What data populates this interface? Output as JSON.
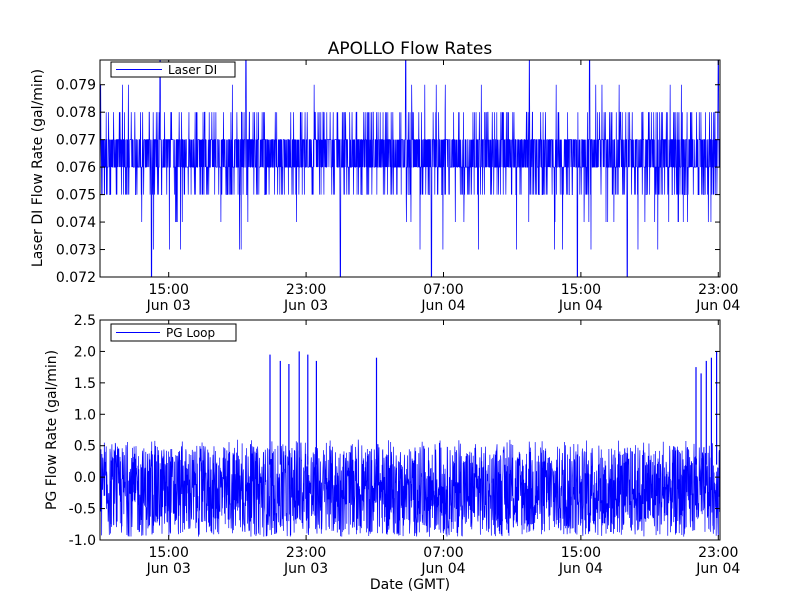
{
  "figure": {
    "title": "APOLLO Flow Rates",
    "xlabel": "Date (GMT)"
  },
  "chart_data": [
    {
      "type": "line",
      "title": "APOLLO Flow Rates",
      "xlabel": "",
      "ylabel": "Laser DI Flow Rate (gal/min)",
      "ylim": [
        0.072,
        0.0799
      ],
      "yticks": [
        "0.072",
        "0.073",
        "0.074",
        "0.075",
        "0.076",
        "0.077",
        "0.078",
        "0.079"
      ],
      "xticks": [
        {
          "time": "15:00",
          "date": "Jun 03"
        },
        {
          "time": "23:00",
          "date": "Jun 03"
        },
        {
          "time": "07:00",
          "date": "Jun 04"
        },
        {
          "time": "15:00",
          "date": "Jun 04"
        },
        {
          "time": "23:00",
          "date": "Jun 04"
        }
      ],
      "xlim_hours": [
        11.0,
        47.1
      ],
      "xtick_hours": [
        15,
        23,
        31,
        39,
        47
      ],
      "legend": {
        "label": "Laser DI",
        "placement": "top-left"
      },
      "series": [
        {
          "name": "Laser DI",
          "color": "#0000ff",
          "baseline": 0.0765,
          "band": [
            0.076,
            0.077
          ],
          "common_range": [
            0.075,
            0.078
          ],
          "occasional_range": [
            0.073,
            0.079
          ],
          "extremes": [
            0.072,
            0.08
          ],
          "spikes_high_hours": [
            14.5,
            19.5,
            28.8,
            36.0,
            39.5,
            47.0
          ],
          "spikes_low_hours": [
            14.0,
            25.0,
            30.3,
            38.8,
            41.7
          ]
        }
      ]
    },
    {
      "type": "line",
      "title": "",
      "xlabel": "Date (GMT)",
      "ylabel": "PG Flow Rate (gal/min)",
      "ylim": [
        -1.0,
        2.5
      ],
      "yticks": [
        "-1.0",
        "-0.5",
        "0.0",
        "0.5",
        "1.0",
        "1.5",
        "2.0",
        "2.5"
      ],
      "xticks": [
        {
          "time": "15:00",
          "date": "Jun 03"
        },
        {
          "time": "23:00",
          "date": "Jun 03"
        },
        {
          "time": "07:00",
          "date": "Jun 04"
        },
        {
          "time": "15:00",
          "date": "Jun 04"
        },
        {
          "time": "23:00",
          "date": "Jun 04"
        }
      ],
      "xlim_hours": [
        11.0,
        47.1
      ],
      "xtick_hours": [
        15,
        23,
        31,
        39,
        47
      ],
      "legend": {
        "label": "PG Loop",
        "placement": "top-left"
      },
      "series": [
        {
          "name": "PG Loop",
          "color": "#0000ff",
          "noise_range": [
            -0.95,
            0.5
          ],
          "spikes": [
            {
              "hour": 20.9,
              "value": 1.95
            },
            {
              "hour": 21.5,
              "value": 1.85
            },
            {
              "hour": 22.0,
              "value": 1.8
            },
            {
              "hour": 22.6,
              "value": 2.0
            },
            {
              "hour": 23.1,
              "value": 1.95
            },
            {
              "hour": 23.6,
              "value": 1.85
            },
            {
              "hour": 27.1,
              "value": 1.9
            },
            {
              "hour": 45.7,
              "value": 1.75
            },
            {
              "hour": 46.0,
              "value": 1.65
            },
            {
              "hour": 46.3,
              "value": 1.85
            },
            {
              "hour": 46.6,
              "value": 1.9
            },
            {
              "hour": 46.9,
              "value": 2.0
            }
          ]
        }
      ]
    }
  ]
}
